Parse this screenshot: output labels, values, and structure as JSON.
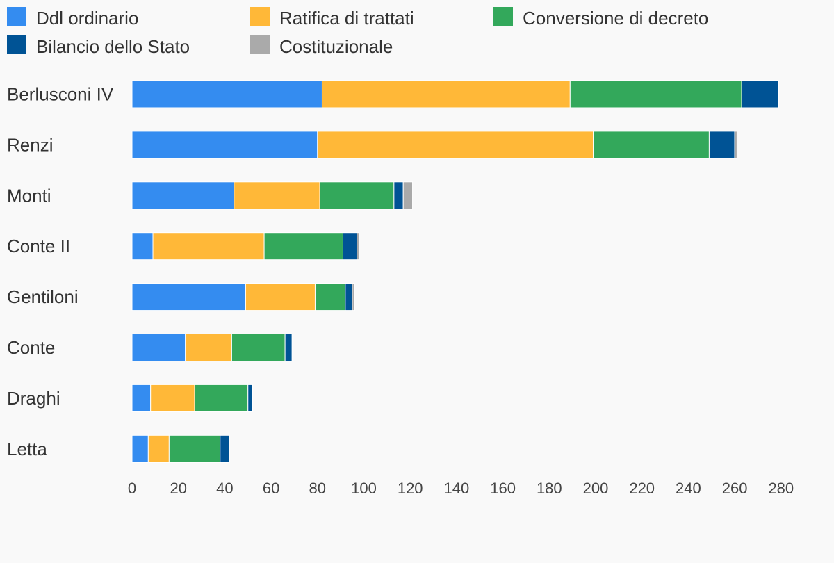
{
  "chart_data": {
    "type": "bar",
    "orientation": "horizontal",
    "stacked": true,
    "categories": [
      "Berlusconi IV",
      "Renzi",
      "Monti",
      "Conte II",
      "Gentiloni",
      "Conte",
      "Draghi",
      "Letta"
    ],
    "series": [
      {
        "name": "Ddl ordinario",
        "color": "#348cf0",
        "values": [
          82,
          80,
          44,
          9,
          49,
          23,
          8,
          7
        ]
      },
      {
        "name": "Ratifica di trattati",
        "color": "#ffb838",
        "values": [
          107,
          119,
          37,
          48,
          30,
          20,
          19,
          9
        ]
      },
      {
        "name": "Conversione di decreto",
        "color": "#33a85b",
        "values": [
          74,
          50,
          32,
          34,
          13,
          23,
          23,
          22
        ]
      },
      {
        "name": "Bilancio dello Stato",
        "color": "#005395",
        "values": [
          16,
          11,
          4,
          6,
          3,
          3,
          2,
          4
        ]
      },
      {
        "name": "Costituzionale",
        "color": "#aaaaaa",
        "values": [
          0,
          1,
          4,
          1,
          1,
          0,
          0,
          0
        ]
      }
    ],
    "xticks": [
      0,
      20,
      40,
      60,
      80,
      100,
      120,
      140,
      160,
      180,
      200,
      220,
      240,
      260,
      280
    ],
    "xlim": [
      0,
      280
    ],
    "legend_position": "top",
    "grid": false
  }
}
